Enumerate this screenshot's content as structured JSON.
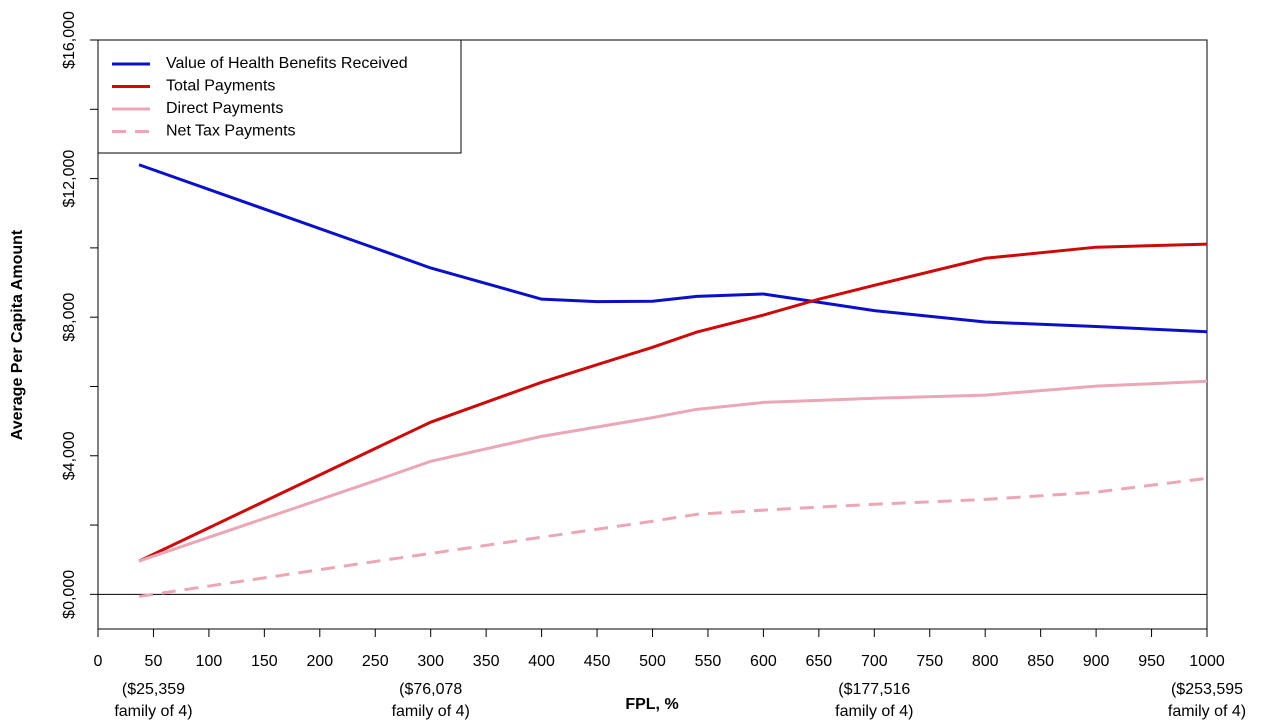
{
  "chart_data": {
    "type": "line",
    "xlabel": "FPL, %",
    "ylabel": "Average Per Capita Amount",
    "x": [
      37,
      250,
      300,
      400,
      450,
      500,
      540,
      600,
      650,
      700,
      800,
      900,
      1000
    ],
    "series": [
      {
        "name": "Value of Health Benefits Received",
        "color": "#0a10c8",
        "dash": false,
        "values": [
          12400,
          9990,
          9420,
          8520,
          8450,
          8460,
          8600,
          8670,
          8430,
          8190,
          7860,
          7730,
          7580
        ]
      },
      {
        "name": "Total Payments",
        "color": "#cc0a0a",
        "dash": false,
        "values": [
          960,
          4210,
          4970,
          6120,
          6630,
          7130,
          7570,
          8060,
          8520,
          8920,
          9700,
          10020,
          10110
        ]
      },
      {
        "name": "Direct Payments",
        "color": "#eba7b5",
        "dash": false,
        "values": [
          960,
          3280,
          3840,
          4560,
          4830,
          5100,
          5340,
          5540,
          5600,
          5660,
          5750,
          6010,
          6150
        ]
      },
      {
        "name": "Net Tax Payments",
        "color": "#eba7b5",
        "dash": true,
        "values": [
          -60,
          950,
          1180,
          1650,
          1880,
          2110,
          2310,
          2430,
          2520,
          2600,
          2740,
          2950,
          3350
        ]
      }
    ],
    "xlim": [
      0,
      1000
    ],
    "xticks": [
      0,
      50,
      100,
      150,
      200,
      250,
      300,
      350,
      400,
      450,
      500,
      550,
      600,
      650,
      700,
      750,
      800,
      850,
      900,
      950,
      1000
    ],
    "ylim": [
      -1000,
      16000
    ],
    "yticks": [
      {
        "value": 0,
        "label": "$0,000"
      },
      {
        "value": 4000,
        "label": "$4,000"
      },
      {
        "value": 8000,
        "label": "$8,000"
      },
      {
        "value": 12000,
        "label": "$12,000"
      },
      {
        "value": 16000,
        "label": "$16,000"
      }
    ],
    "yminor_ticks": [
      2000,
      6000,
      10000,
      14000
    ],
    "reference_line": 0,
    "legend": "top-left",
    "x_annotations": [
      {
        "x": 50,
        "lines": [
          "($25,359",
          "family of 4)"
        ]
      },
      {
        "x": 300,
        "lines": [
          "($76,078",
          "family of 4)"
        ]
      },
      {
        "x": 700,
        "lines": [
          "($177,516",
          "family of 4)"
        ]
      },
      {
        "x": 1000,
        "lines": [
          "($253,595",
          "family of 4)"
        ]
      }
    ]
  }
}
